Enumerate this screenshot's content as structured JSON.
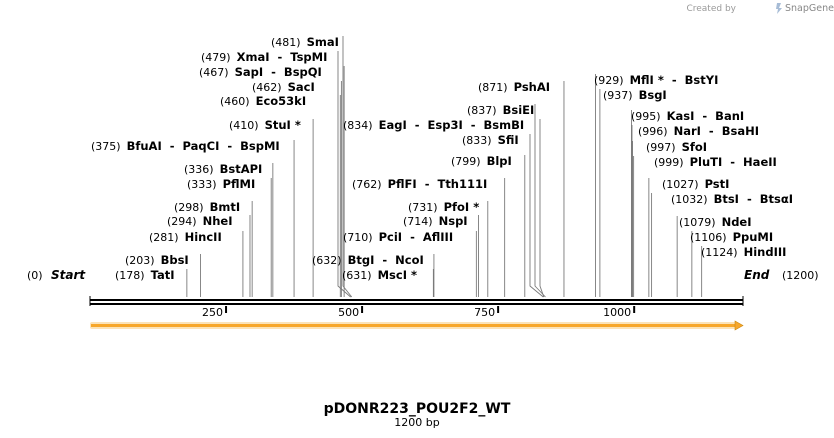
{
  "branding": {
    "prefix": "Created by",
    "product": "SnapGene"
  },
  "plasmid": {
    "name": "pDONR223_POU2F2_WT",
    "length_label": "1200 bp",
    "length": 1200
  },
  "ends": {
    "start": {
      "pos": "(0)",
      "name": "Start"
    },
    "end": {
      "pos": "(1200)",
      "name": "End"
    }
  },
  "ruler": {
    "ticks": [
      {
        "value": 250,
        "label": "250"
      },
      {
        "value": 500,
        "label": "500"
      },
      {
        "value": 750,
        "label": "750"
      },
      {
        "value": 1000,
        "label": "1000"
      }
    ]
  },
  "colors": {
    "feature_fill": "#f7a72a",
    "feature_glow": "#fbe3b8",
    "backbone": "#000000",
    "leader": "#7a7a7a"
  },
  "sites": [
    {
      "pos": 178,
      "pos_label": "(178)",
      "names": "TatI"
    },
    {
      "pos": 203,
      "pos_label": "(203)",
      "names": "BbsI"
    },
    {
      "pos": 281,
      "pos_label": "(281)",
      "names": "HincII"
    },
    {
      "pos": 294,
      "pos_label": "(294)",
      "names": "NheI"
    },
    {
      "pos": 298,
      "pos_label": "(298)",
      "names": "BmtI"
    },
    {
      "pos": 333,
      "pos_label": "(333)",
      "names": "PflMI"
    },
    {
      "pos": 336,
      "pos_label": "(336)",
      "names": "BstAPI"
    },
    {
      "pos": 375,
      "pos_label": "(375)",
      "names": "BfuAI  -  PaqCI  -  BspMI"
    },
    {
      "pos": 410,
      "pos_label": "(410)",
      "names": "StuI *"
    },
    {
      "pos": 460,
      "pos_label": "(460)",
      "names": "Eco53kI"
    },
    {
      "pos": 462,
      "pos_label": "(462)",
      "names": "SacI"
    },
    {
      "pos": 467,
      "pos_label": "(467)",
      "names": "SapI  -  BspQI"
    },
    {
      "pos": 479,
      "pos_label": "(479)",
      "names": "XmaI  -  TspMI"
    },
    {
      "pos": 481,
      "pos_label": "(481)",
      "names": "SmaI"
    },
    {
      "pos": 631,
      "pos_label": "(631)",
      "names": "MscI *"
    },
    {
      "pos": 632,
      "pos_label": "(632)",
      "names": "BtgI  -  NcoI"
    },
    {
      "pos": 710,
      "pos_label": "(710)",
      "names": "PciI  -  AflIII"
    },
    {
      "pos": 714,
      "pos_label": "(714)",
      "names": "NspI"
    },
    {
      "pos": 731,
      "pos_label": "(731)",
      "names": "PfoI *"
    },
    {
      "pos": 762,
      "pos_label": "(762)",
      "names": "PflFI  -  Tth111I"
    },
    {
      "pos": 799,
      "pos_label": "(799)",
      "names": "BlpI"
    },
    {
      "pos": 833,
      "pos_label": "(833)",
      "names": "SfiI"
    },
    {
      "pos": 834,
      "pos_label": "(834)",
      "names": "EagI  -  Esp3I  -  BsmBI"
    },
    {
      "pos": 837,
      "pos_label": "(837)",
      "names": "BsiEI"
    },
    {
      "pos": 871,
      "pos_label": "(871)",
      "names": "PshAI"
    },
    {
      "pos": 929,
      "pos_label": "(929)",
      "names": "MflI *  -  BstYI"
    },
    {
      "pos": 937,
      "pos_label": "(937)",
      "names": "BsgI"
    },
    {
      "pos": 995,
      "pos_label": "(995)",
      "names": "KasI  -  BanI"
    },
    {
      "pos": 996,
      "pos_label": "(996)",
      "names": "NarI  -  BsaHI"
    },
    {
      "pos": 997,
      "pos_label": "(997)",
      "names": "SfoI"
    },
    {
      "pos": 999,
      "pos_label": "(999)",
      "names": "PluTI  -  HaeII"
    },
    {
      "pos": 1027,
      "pos_label": "(1027)",
      "names": "PstI"
    },
    {
      "pos": 1032,
      "pos_label": "(1032)",
      "names": "BtsI  -  BtsαI"
    },
    {
      "pos": 1079,
      "pos_label": "(1079)",
      "names": "NdeI"
    },
    {
      "pos": 1106,
      "pos_label": "(1106)",
      "names": "PpuMI"
    },
    {
      "pos": 1124,
      "pos_label": "(1124)",
      "names": "HindIII"
    }
  ]
}
